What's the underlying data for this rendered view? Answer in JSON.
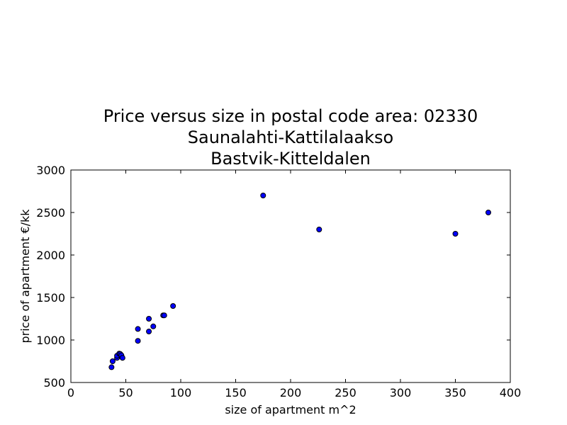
{
  "chart_data": {
    "type": "scatter",
    "title": {
      "lines": [
        "Price versus size in postal code area: 02330",
        "Saunalahti-Kattilalaakso",
        "Bastvik-Kitteldalen"
      ]
    },
    "xlabel": "size of apartment m^2",
    "ylabel": "price of apartment €/kk",
    "xlim": [
      0,
      400
    ],
    "ylim": [
      500,
      3000
    ],
    "xticks": [
      "0",
      "50",
      "100",
      "150",
      "200",
      "250",
      "300",
      "350",
      "400"
    ],
    "yticks": [
      "500",
      "1000",
      "1500",
      "2000",
      "2500",
      "3000"
    ],
    "grid": false,
    "legend": "none",
    "marker_color": "#0000ff",
    "marker_edge_color": "#000000",
    "points": [
      {
        "x": 37,
        "y": 680
      },
      {
        "x": 38,
        "y": 750
      },
      {
        "x": 42,
        "y": 790
      },
      {
        "x": 42,
        "y": 815
      },
      {
        "x": 44,
        "y": 840
      },
      {
        "x": 45,
        "y": 835
      },
      {
        "x": 46,
        "y": 820
      },
      {
        "x": 47,
        "y": 790
      },
      {
        "x": 61,
        "y": 990
      },
      {
        "x": 61,
        "y": 1130
      },
      {
        "x": 71,
        "y": 1100
      },
      {
        "x": 71,
        "y": 1250
      },
      {
        "x": 75,
        "y": 1160
      },
      {
        "x": 84,
        "y": 1290
      },
      {
        "x": 85,
        "y": 1290
      },
      {
        "x": 93,
        "y": 1400
      },
      {
        "x": 175,
        "y": 2700
      },
      {
        "x": 226,
        "y": 2300
      },
      {
        "x": 350,
        "y": 2250
      },
      {
        "x": 380,
        "y": 2500
      }
    ]
  }
}
